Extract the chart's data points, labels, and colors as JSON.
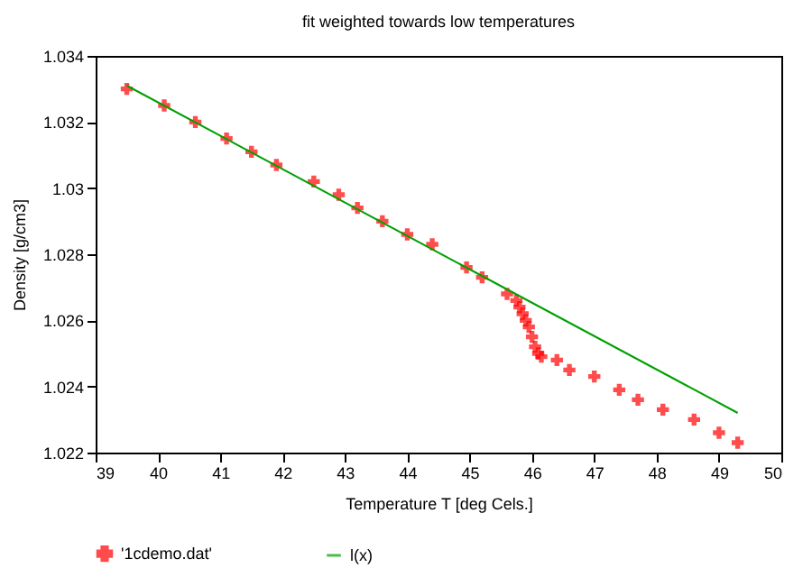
{
  "chart_data": {
    "type": "scatter",
    "title": "fit weighted towards low temperatures",
    "xlabel": "Temperature T  [deg Cels.]",
    "ylabel": "Density [g/cm3]",
    "xlim": [
      39,
      50
    ],
    "xticks": [
      39,
      40,
      41,
      42,
      43,
      44,
      45,
      46,
      47,
      48,
      49,
      50
    ],
    "ylim": [
      1.022,
      1.034
    ],
    "yticks": [
      1.022,
      1.024,
      1.026,
      1.028,
      1.03,
      1.032,
      1.034
    ],
    "legend": "bottom",
    "grid": false,
    "series": [
      {
        "name": "'1cdemo.dat'",
        "marker": "cross",
        "color": "#ff0000",
        "x": [
          39.5,
          40.1,
          40.6,
          41.1,
          41.5,
          41.9,
          42.5,
          42.9,
          43.2,
          43.6,
          44.0,
          44.4,
          44.95,
          45.2,
          45.6,
          45.75,
          45.8,
          45.85,
          45.9,
          45.95,
          46.0,
          46.05,
          46.1,
          46.15,
          46.4,
          46.6,
          47.0,
          47.4,
          47.7,
          48.1,
          48.6,
          49.0,
          49.3
        ],
        "values": [
          1.033,
          1.0325,
          1.032,
          1.0315,
          1.0311,
          1.0307,
          1.0302,
          1.0298,
          1.0294,
          1.029,
          1.0286,
          1.0283,
          1.0276,
          1.0273,
          1.0268,
          1.0266,
          1.0264,
          1.0262,
          1.026,
          1.0258,
          1.0255,
          1.0252,
          1.025,
          1.0249,
          1.0248,
          1.0245,
          1.0243,
          1.0239,
          1.0236,
          1.0233,
          1.023,
          1.0226,
          1.0223
        ]
      },
      {
        "name": "l(x)",
        "type": "line",
        "color": "#00a000",
        "x": [
          39.5,
          49.3
        ],
        "values": [
          1.0331,
          1.0232
        ]
      }
    ]
  }
}
